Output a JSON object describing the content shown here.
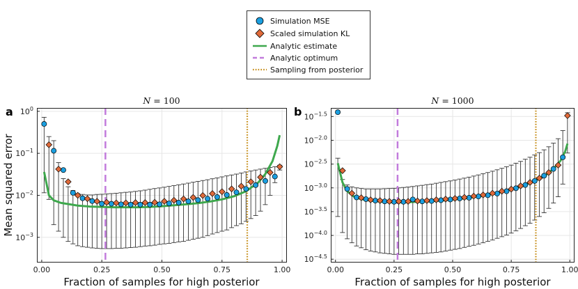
{
  "chart_data": [
    {
      "type": "scatter",
      "panel_label": "a",
      "title_var": "N",
      "title_value": "100",
      "xlabel": "Fraction of samples for high posterior",
      "ylabel": "Mean squared error",
      "yscale": "log",
      "xlim": [
        -0.02,
        1.02
      ],
      "ylim_log10": [
        -3.6,
        0.08
      ],
      "xticks": [
        "0.00",
        "0.25",
        "0.50",
        "0.75",
        "1.00"
      ],
      "xtick_values": [
        0,
        0.25,
        0.5,
        0.75,
        1.0
      ],
      "ytick_exponents": [
        "0",
        "−1",
        "−2",
        "−3"
      ],
      "ytick_values_log10": [
        0,
        -1,
        -2,
        -3
      ],
      "analytic_optimum_x": 0.265,
      "sampling_from_posterior_x": 0.855,
      "x": [
        0.01,
        0.03,
        0.05,
        0.07,
        0.09,
        0.11,
        0.13,
        0.15,
        0.17,
        0.19,
        0.21,
        0.23,
        0.25,
        0.27,
        0.29,
        0.31,
        0.33,
        0.35,
        0.37,
        0.39,
        0.41,
        0.43,
        0.45,
        0.47,
        0.49,
        0.51,
        0.53,
        0.55,
        0.57,
        0.59,
        0.61,
        0.63,
        0.65,
        0.67,
        0.69,
        0.71,
        0.73,
        0.75,
        0.77,
        0.79,
        0.81,
        0.83,
        0.85,
        0.87,
        0.89,
        0.91,
        0.93,
        0.95,
        0.97,
        0.99
      ],
      "series": [
        {
          "name": "Simulation MSE",
          "marker": "circle",
          "color": "#1b9fe0",
          "x": [
            0.01,
            0.05,
            0.09,
            0.13,
            0.17,
            0.21,
            0.25,
            0.29,
            0.33,
            0.37,
            0.41,
            0.45,
            0.49,
            0.53,
            0.57,
            0.61,
            0.65,
            0.69,
            0.73,
            0.77,
            0.81,
            0.85,
            0.89,
            0.93,
            0.97
          ],
          "values": [
            0.5,
            0.115,
            0.04,
            0.0115,
            0.0085,
            0.0073,
            0.0063,
            0.0063,
            0.0061,
            0.006,
            0.006,
            0.006,
            0.0061,
            0.0064,
            0.0067,
            0.0072,
            0.0077,
            0.0083,
            0.0091,
            0.0102,
            0.0118,
            0.0142,
            0.0175,
            0.022,
            0.028
          ]
        },
        {
          "name": "Scaled simulation KL",
          "marker": "diamond",
          "color": "#e06a3a",
          "x": [
            0.03,
            0.07,
            0.11,
            0.15,
            0.19,
            0.23,
            0.27,
            0.31,
            0.35,
            0.39,
            0.43,
            0.47,
            0.51,
            0.55,
            0.59,
            0.63,
            0.67,
            0.71,
            0.75,
            0.79,
            0.83,
            0.87,
            0.91,
            0.95,
            0.99
          ],
          "values": [
            0.16,
            0.042,
            0.021,
            0.01,
            0.0083,
            0.0072,
            0.0068,
            0.0066,
            0.0066,
            0.0067,
            0.0067,
            0.0068,
            0.0072,
            0.0076,
            0.0082,
            0.0089,
            0.0099,
            0.011,
            0.0122,
            0.0142,
            0.0165,
            0.021,
            0.027,
            0.035,
            0.048
          ]
        },
        {
          "name": "Analytic estimate",
          "type": "line",
          "color": "#3ea84d",
          "x": [
            0.01,
            0.03,
            0.05,
            0.08,
            0.11,
            0.15,
            0.2,
            0.25,
            0.3,
            0.35,
            0.4,
            0.45,
            0.5,
            0.55,
            0.6,
            0.65,
            0.7,
            0.75,
            0.8,
            0.85,
            0.9,
            0.93,
            0.96,
            0.98,
            0.99
          ],
          "values": [
            0.036,
            0.01,
            0.0076,
            0.0066,
            0.0062,
            0.0057,
            0.0054,
            0.0053,
            0.0052,
            0.0052,
            0.0052,
            0.0053,
            0.0055,
            0.0058,
            0.0061,
            0.0065,
            0.0071,
            0.008,
            0.0095,
            0.0125,
            0.02,
            0.032,
            0.065,
            0.15,
            0.27
          ]
        }
      ],
      "errorbars": {
        "x": [
          0.01,
          0.03,
          0.05,
          0.07,
          0.09,
          0.11,
          0.13,
          0.15,
          0.17,
          0.19,
          0.21,
          0.23,
          0.25,
          0.27,
          0.29,
          0.31,
          0.33,
          0.35,
          0.37,
          0.39,
          0.41,
          0.43,
          0.45,
          0.47,
          0.49,
          0.51,
          0.53,
          0.55,
          0.57,
          0.59,
          0.61,
          0.63,
          0.65,
          0.67,
          0.69,
          0.71,
          0.73,
          0.75,
          0.77,
          0.79,
          0.81,
          0.83,
          0.85,
          0.87,
          0.89,
          0.91,
          0.93,
          0.95,
          0.97,
          0.99
        ],
        "lower": [
          0.0115,
          0.008,
          0.002,
          0.0014,
          0.001,
          0.0008,
          0.0007,
          0.00063,
          0.0006,
          0.00058,
          0.00056,
          0.00055,
          0.00054,
          0.00054,
          0.00054,
          0.00055,
          0.00055,
          0.00056,
          0.00057,
          0.00058,
          0.0006,
          0.00062,
          0.00063,
          0.00065,
          0.00068,
          0.0007,
          0.00072,
          0.00075,
          0.00078,
          0.0008,
          0.00085,
          0.0009,
          0.00095,
          0.001,
          0.0011,
          0.0012,
          0.0013,
          0.0014,
          0.0015,
          0.0017,
          0.0019,
          0.0021,
          0.0024,
          0.0028,
          0.0033,
          0.0042,
          0.006,
          0.01,
          0.02,
          0.04
        ],
        "upper": [
          0.72,
          0.25,
          0.2,
          0.06,
          0.025,
          0.016,
          0.013,
          0.011,
          0.0105,
          0.0102,
          0.0102,
          0.0105,
          0.0106,
          0.0108,
          0.011,
          0.0112,
          0.0115,
          0.0118,
          0.012,
          0.0124,
          0.0128,
          0.0133,
          0.0139,
          0.0145,
          0.015,
          0.0156,
          0.0163,
          0.017,
          0.0178,
          0.0186,
          0.0195,
          0.0205,
          0.0215,
          0.0225,
          0.0235,
          0.0248,
          0.026,
          0.0275,
          0.029,
          0.0305,
          0.032,
          0.034,
          0.036,
          0.038,
          0.04,
          0.042,
          0.044,
          0.046,
          0.048,
          0.052
        ]
      }
    },
    {
      "type": "scatter",
      "panel_label": "b",
      "title_var": "N",
      "title_value": "1000",
      "xlabel": "Fraction of samples for high posterior",
      "yscale": "log",
      "xlim": [
        -0.02,
        1.02
      ],
      "ylim_log10": [
        -4.57,
        -1.32
      ],
      "xticks": [
        "0.00",
        "0.25",
        "0.50",
        "0.75",
        "1.00"
      ],
      "xtick_values": [
        0,
        0.25,
        0.5,
        0.75,
        1.0
      ],
      "ytick_exponents": [
        "−1.5",
        "−2.0",
        "−2.5",
        "−3.0",
        "−3.5",
        "−4.0",
        "−4.5"
      ],
      "ytick_values_log10": [
        -1.5,
        -2.0,
        -2.5,
        -3.0,
        -3.5,
        -4.0,
        -4.5
      ],
      "analytic_optimum_x": 0.265,
      "sampling_from_posterior_x": 0.855,
      "series": [
        {
          "name": "Simulation MSE",
          "marker": "circle",
          "color": "#1b9fe0",
          "x": [
            0.01,
            0.05,
            0.09,
            0.13,
            0.17,
            0.21,
            0.25,
            0.29,
            0.33,
            0.37,
            0.41,
            0.45,
            0.49,
            0.53,
            0.57,
            0.61,
            0.65,
            0.69,
            0.73,
            0.77,
            0.81,
            0.85,
            0.89,
            0.93,
            0.97
          ],
          "values": [
            0.039,
            0.00095,
            0.00063,
            0.00058,
            0.00054,
            0.00052,
            0.00051,
            0.00051,
            0.00057,
            0.00052,
            0.00053,
            0.00055,
            0.00057,
            0.0006,
            0.00062,
            0.00066,
            0.0007,
            0.00076,
            0.00085,
            0.00098,
            0.00115,
            0.0014,
            0.0018,
            0.0025,
            0.0044
          ]
        },
        {
          "name": "Scaled simulation KL",
          "marker": "diamond",
          "color": "#e06a3a",
          "x": [
            0.03,
            0.07,
            0.11,
            0.15,
            0.19,
            0.23,
            0.27,
            0.31,
            0.35,
            0.39,
            0.43,
            0.47,
            0.51,
            0.55,
            0.59,
            0.63,
            0.67,
            0.71,
            0.75,
            0.79,
            0.83,
            0.87,
            0.91,
            0.95,
            0.99
          ],
          "values": [
            0.0023,
            0.00077,
            0.00062,
            0.00056,
            0.00054,
            0.00052,
            0.00052,
            0.00052,
            0.00053,
            0.00054,
            0.00056,
            0.00058,
            0.0006,
            0.00063,
            0.00067,
            0.00071,
            0.00077,
            0.00085,
            0.00094,
            0.0011,
            0.0013,
            0.0016,
            0.0021,
            0.003,
            0.033
          ]
        },
        {
          "name": "Analytic estimate",
          "type": "line",
          "color": "#3ea84d",
          "x": [
            0.01,
            0.03,
            0.05,
            0.08,
            0.11,
            0.15,
            0.2,
            0.25,
            0.3,
            0.35,
            0.4,
            0.45,
            0.5,
            0.55,
            0.6,
            0.65,
            0.7,
            0.75,
            0.8,
            0.85,
            0.9,
            0.93,
            0.96,
            0.98,
            0.99
          ],
          "values": [
            0.0033,
            0.0013,
            0.00085,
            0.00065,
            0.00058,
            0.00054,
            0.00051,
            0.0005,
            0.0005,
            0.00051,
            0.00052,
            0.00054,
            0.00057,
            0.0006,
            0.00065,
            0.00071,
            0.0008,
            0.00092,
            0.0011,
            0.0014,
            0.0019,
            0.0025,
            0.0037,
            0.0058,
            0.0085
          ]
        }
      ],
      "errorbars": {
        "x": [
          0.01,
          0.03,
          0.05,
          0.07,
          0.09,
          0.11,
          0.13,
          0.15,
          0.17,
          0.19,
          0.21,
          0.23,
          0.25,
          0.27,
          0.29,
          0.31,
          0.33,
          0.35,
          0.37,
          0.39,
          0.41,
          0.43,
          0.45,
          0.47,
          0.49,
          0.51,
          0.53,
          0.55,
          0.57,
          0.59,
          0.61,
          0.63,
          0.65,
          0.67,
          0.69,
          0.71,
          0.73,
          0.75,
          0.77,
          0.79,
          0.81,
          0.83,
          0.85,
          0.87,
          0.89,
          0.91,
          0.93,
          0.95,
          0.97,
          0.99
        ],
        "lower": [
          0.00025,
          0.000115,
          8.5e-05,
          7e-05,
          6e-05,
          5.5e-05,
          5e-05,
          4.7e-05,
          4.5e-05,
          4.3e-05,
          4.2e-05,
          4.1e-05,
          4e-05,
          4e-05,
          4e-05,
          4e-05,
          4e-05,
          4.1e-05,
          4.1e-05,
          4.2e-05,
          4.3e-05,
          4.4e-05,
          4.5e-05,
          4.7e-05,
          4.9e-05,
          5.1e-05,
          5.3e-05,
          5.6e-05,
          5.9e-05,
          6.2e-05,
          6.6e-05,
          7e-05,
          7.5e-05,
          8e-05,
          8.7e-05,
          9.4e-05,
          0.000102,
          0.000112,
          0.000125,
          0.00014,
          0.00016,
          0.00018,
          0.00021,
          0.00025,
          0.0003,
          0.00037,
          0.00048,
          0.00065,
          0.0012,
          0.0054
        ],
        "upper": [
          0.0042,
          0.0015,
          0.00115,
          0.00105,
          0.001,
          0.00097,
          0.00095,
          0.00095,
          0.00095,
          0.00095,
          0.00096,
          0.00097,
          0.00098,
          0.001,
          0.00102,
          0.00104,
          0.00107,
          0.0011,
          0.00113,
          0.00117,
          0.0012,
          0.00125,
          0.0013,
          0.00135,
          0.0014,
          0.00146,
          0.00153,
          0.0016,
          0.00168,
          0.00177,
          0.00187,
          0.00198,
          0.0021,
          0.00224,
          0.0024,
          0.00258,
          0.00278,
          0.003,
          0.0033,
          0.0036,
          0.004,
          0.0044,
          0.0049,
          0.0055,
          0.0063,
          0.0073,
          0.0087,
          0.0108,
          0.016,
          0.038
        ]
      }
    }
  ],
  "legend": {
    "position": "top-center",
    "entries": [
      {
        "label": "Simulation MSE",
        "style": "circle",
        "color": "#1b9fe0"
      },
      {
        "label": "Scaled simulation KL",
        "style": "diamond",
        "color": "#e06a3a"
      },
      {
        "label": "Analytic estimate",
        "style": "solid",
        "color": "#3ea84d"
      },
      {
        "label": "Analytic optimum",
        "style": "dashed",
        "color": "#c27bdc"
      },
      {
        "label": "Sampling from posterior",
        "style": "dotted",
        "color": "#c48a12"
      }
    ]
  }
}
